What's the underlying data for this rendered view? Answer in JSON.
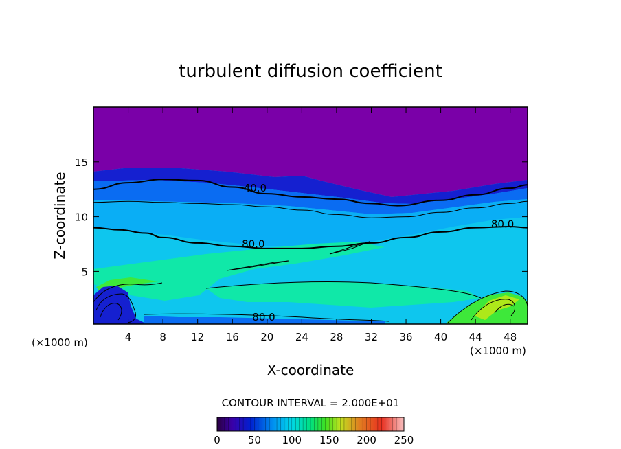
{
  "chart_data": {
    "type": "heatmap",
    "title": "turbulent diffusion coefficient",
    "xlabel": "X-coordinate",
    "ylabel": "Z-coordinate",
    "x_unit_left": "(×1000 m)",
    "x_unit_right": "(×1000 m)",
    "xlim": [
      0,
      50
    ],
    "ylim": [
      0.2,
      20
    ],
    "x_ticks": [
      4,
      8,
      12,
      16,
      20,
      24,
      28,
      32,
      36,
      40,
      44,
      48
    ],
    "y_ticks": [
      5,
      10,
      15
    ],
    "contour_interval_text": "CONTOUR INTERVAL = 2.000E+01",
    "contour_labels": [
      {
        "text": "40.0",
        "x": 17.3,
        "z": 12.3
      },
      {
        "text": "80.0",
        "x": 17.1,
        "z": 7.2
      },
      {
        "text": "80.0",
        "x": 45.8,
        "z": 9.0
      },
      {
        "text": "80.0",
        "x": 18.3,
        "z": 0.5
      }
    ],
    "contours": [
      {
        "level": 40,
        "x": [
          0,
          4,
          8,
          12,
          16,
          20,
          24,
          28,
          32,
          35,
          40,
          44,
          48,
          50
        ],
        "z": [
          12.5,
          13.1,
          13.4,
          13.3,
          12.7,
          12.1,
          11.8,
          11.6,
          11.2,
          11.0,
          11.5,
          12.0,
          12.6,
          12.9
        ]
      },
      {
        "level": 60,
        "x": [
          0,
          4,
          8,
          12,
          16,
          20,
          24,
          28,
          32,
          36,
          40,
          44,
          48,
          50
        ],
        "z": [
          11.3,
          11.4,
          11.3,
          11.2,
          11.1,
          10.9,
          10.6,
          10.2,
          9.9,
          10.0,
          10.4,
          10.8,
          11.2,
          11.4
        ]
      },
      {
        "level": 80,
        "x": [
          0,
          3,
          6,
          8,
          12,
          16,
          20,
          24,
          28,
          32,
          36,
          40,
          44,
          48,
          50
        ],
        "z": [
          9.0,
          8.8,
          8.5,
          8.1,
          7.6,
          7.3,
          7.1,
          7.1,
          7.3,
          7.6,
          8.1,
          8.6,
          9.0,
          9.1,
          9.0
        ]
      }
    ],
    "colorbar": {
      "ticks": [
        0,
        50,
        100,
        150,
        200,
        250
      ],
      "range": [
        0,
        250
      ],
      "colors": [
        "#1a0033",
        "#3a00a0",
        "#0020c8",
        "#0070e8",
        "#00c0e0",
        "#00d890",
        "#40e030",
        "#c0e020",
        "#e07020",
        "#e83020",
        "#f0a0a0"
      ]
    },
    "regions": [
      {
        "range": [
          0,
          20
        ],
        "color": "#7a00a8"
      },
      {
        "range": [
          20,
          40
        ],
        "color": "#1520d0"
      },
      {
        "range": [
          40,
          60
        ],
        "color": "#0a6cf2"
      },
      {
        "range": [
          60,
          80
        ],
        "color": "#0aaef5"
      },
      {
        "range": [
          80,
          100
        ],
        "color": "#06e2e6"
      },
      {
        "range": [
          100,
          120
        ],
        "color": "#10e8a8"
      },
      {
        "range": [
          120,
          140
        ],
        "color": "#3ee83a"
      },
      {
        "range": [
          140,
          160
        ],
        "color": "#aee81a"
      }
    ]
  }
}
